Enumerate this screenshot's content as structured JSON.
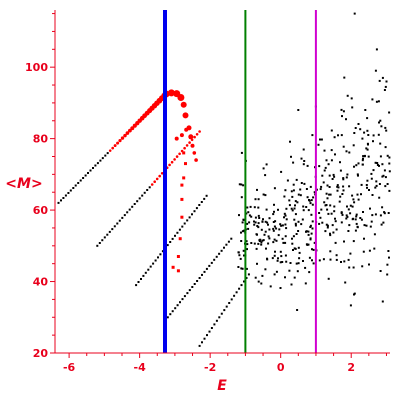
{
  "chart_data": {
    "type": "scatter",
    "title": "",
    "xlabel": "E",
    "ylabel": "<M>",
    "xlim": [
      -6.4,
      3.1
    ],
    "ylim": [
      20,
      116
    ],
    "x_ticks": [
      -6,
      -4,
      -2,
      0,
      2
    ],
    "y_ticks": [
      20,
      40,
      60,
      80,
      100
    ],
    "grid": false,
    "legend": "none",
    "colors": {
      "axis": "#e8001c",
      "ticks_text": "#e8001c",
      "red_points": "#ff0000",
      "black_points": "#000000",
      "line_blue": "#0000ee",
      "line_green": "#008000",
      "line_magenta": "#d000d0"
    },
    "vertical_lines": [
      {
        "x": -3.28,
        "color": "#0000ee",
        "width": 4
      },
      {
        "x": -1.0,
        "color": "#008000",
        "width": 2
      },
      {
        "x": 1.0,
        "color": "#d000d0",
        "width": 2
      }
    ],
    "branches": [
      {
        "x0": -6.3,
        "y0": 62,
        "x1": -3.3,
        "y1": 92,
        "color": "#ff0000",
        "redFrom": -4.9,
        "grow": true
      },
      {
        "x0": -5.2,
        "y0": 50,
        "x1": -2.3,
        "y1": 82,
        "color": "#ff0000",
        "redFrom": -3.7,
        "grow": false
      },
      {
        "x0": -4.1,
        "y0": 39,
        "x1": -2.1,
        "y1": 64,
        "color": "#000000",
        "redFrom": 99,
        "grow": false
      },
      {
        "x0": -3.2,
        "y0": 30,
        "x1": -1.4,
        "y1": 52,
        "color": "#000000",
        "redFrom": 99,
        "grow": false
      },
      {
        "x0": -2.3,
        "y0": 22,
        "x1": -0.9,
        "y1": 42,
        "color": "#000000",
        "redFrom": 99,
        "grow": false
      }
    ],
    "cap_points": [
      {
        "x": -3.25,
        "y": 92.5,
        "r": 3.5
      },
      {
        "x": -3.1,
        "y": 92.8,
        "r": 3.5
      },
      {
        "x": -2.95,
        "y": 92.6,
        "r": 3.5
      },
      {
        "x": -2.83,
        "y": 91.5,
        "r": 3.5
      },
      {
        "x": -2.75,
        "y": 89.5,
        "r": 3
      },
      {
        "x": -2.7,
        "y": 86.5,
        "r": 3
      },
      {
        "x": -2.6,
        "y": 83.0,
        "r": 2.5
      },
      {
        "x": -2.55,
        "y": 80.5,
        "r": 2.5
      },
      {
        "x": -2.5,
        "y": 78.0,
        "r": 2
      },
      {
        "x": -2.68,
        "y": 82.5,
        "r": 2
      },
      {
        "x": -2.8,
        "y": 81.0,
        "r": 2
      },
      {
        "x": -2.95,
        "y": 80.0,
        "r": 2
      },
      {
        "x": -2.45,
        "y": 76.0,
        "r": 1.8
      },
      {
        "x": -2.4,
        "y": 74.0,
        "r": 1.8
      }
    ],
    "stray_red": [
      {
        "x": -2.75,
        "y": 76.0
      },
      {
        "x": -2.7,
        "y": 73.0
      },
      {
        "x": -2.75,
        "y": 69.0
      },
      {
        "x": -2.8,
        "y": 63.0
      },
      {
        "x": -2.8,
        "y": 58.0
      },
      {
        "x": -2.85,
        "y": 52.0
      },
      {
        "x": -2.9,
        "y": 47.0
      },
      {
        "x": -2.9,
        "y": 43.0
      },
      {
        "x": -3.05,
        "y": 44.0
      },
      {
        "x": -2.8,
        "y": 67.0
      }
    ],
    "cloud": {
      "count": 480,
      "seed": 7
    },
    "cloud_outliers": [
      {
        "x": 2.1,
        "y": 115
      },
      {
        "x": 2.7,
        "y": 99
      },
      {
        "x": 2.9,
        "y": 97
      },
      {
        "x": 3.0,
        "y": 96
      },
      {
        "x": 1.0,
        "y": 89
      },
      {
        "x": 0.9,
        "y": 81
      },
      {
        "x": -1.1,
        "y": 76
      },
      {
        "x": 1.9,
        "y": 92
      },
      {
        "x": 2.4,
        "y": 88
      },
      {
        "x": 0.5,
        "y": 88
      }
    ]
  }
}
